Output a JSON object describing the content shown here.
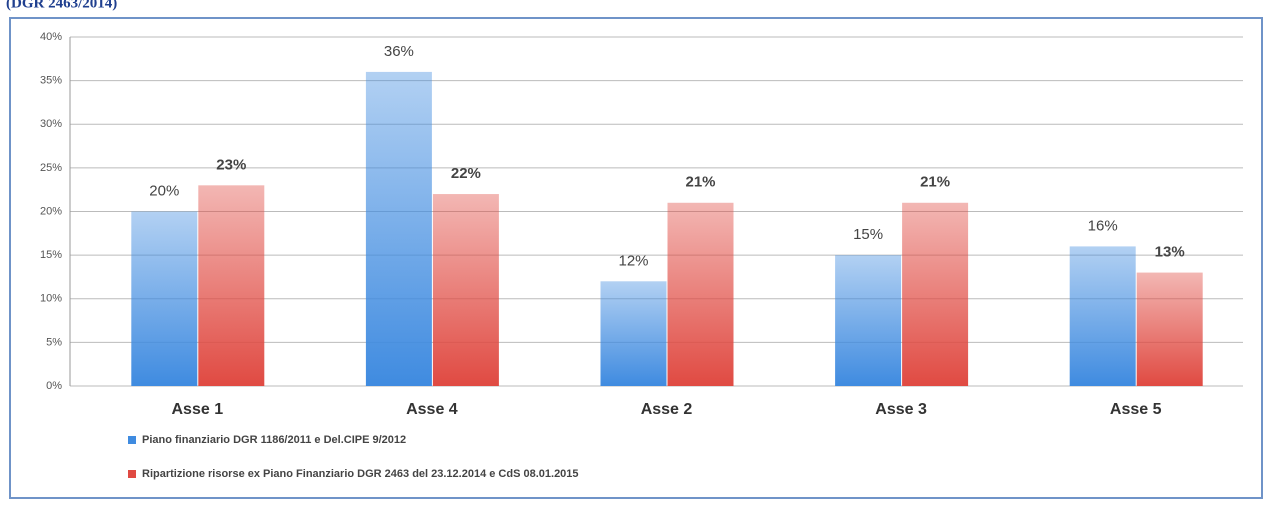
{
  "chart_data": {
    "type": "bar",
    "title": "(DGR 2463/2014)",
    "categories": [
      "Asse 1",
      "Asse 4",
      "Asse 2",
      "Asse 3",
      "Asse 5"
    ],
    "series": [
      {
        "name": "Piano finanziario DGR 1186/2011 e Del.CIPE 9/2012",
        "color": "#3f8be0",
        "values": [
          20,
          36,
          12,
          15,
          16
        ],
        "value_labels": [
          "20%",
          "36%",
          "12%",
          "15%",
          "16%"
        ]
      },
      {
        "name": "Ripartizione risorse ex Piano Finanziario DGR 2463 del 23.12.2014 e CdS 08.01.2015",
        "color": "#e04a42",
        "values": [
          23,
          22,
          21,
          21,
          13
        ],
        "value_labels": [
          "23%",
          "22%",
          "21%",
          "21%",
          "13%"
        ]
      }
    ],
    "ylim": [
      0,
      40
    ],
    "yticks": [
      {
        "value": 0,
        "label": "0%"
      },
      {
        "value": 5,
        "label": "5%"
      },
      {
        "value": 10,
        "label": "10%"
      },
      {
        "value": 15,
        "label": "15%"
      },
      {
        "value": 20,
        "label": "20%"
      },
      {
        "value": 25,
        "label": "25%"
      },
      {
        "value": 30,
        "label": "30%"
      },
      {
        "value": 35,
        "label": "35%"
      },
      {
        "value": 40,
        "label": "40%"
      }
    ],
    "grid": true
  }
}
